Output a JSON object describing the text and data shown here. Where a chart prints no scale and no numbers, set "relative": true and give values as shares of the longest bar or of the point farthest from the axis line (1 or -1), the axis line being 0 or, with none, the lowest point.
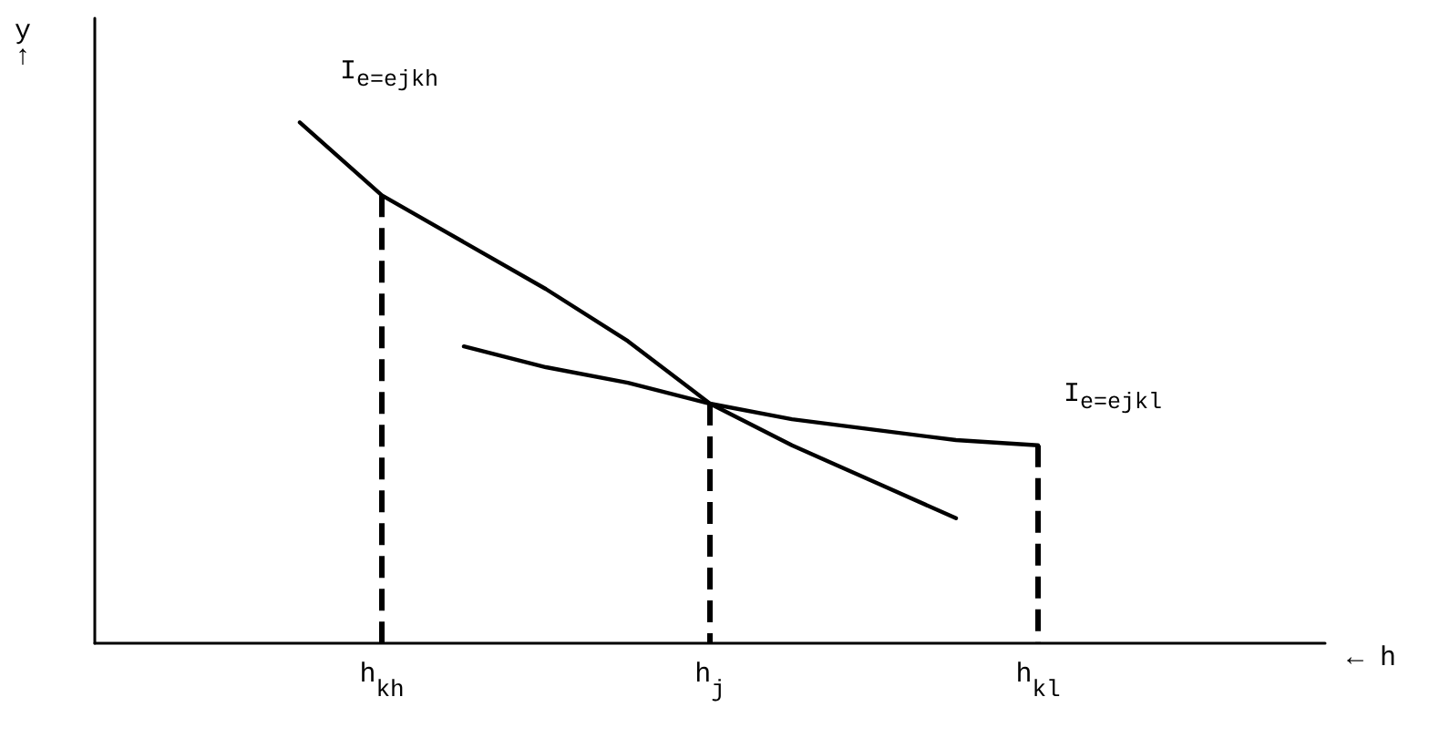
{
  "chart_data": {
    "type": "line",
    "relative": true,
    "xlabel": "← h",
    "ylabel": "y↑",
    "categories": [
      null,
      null,
      null,
      "h$_{kh}$",
      null,
      null,
      null,
      "h$_{j}$",
      null,
      null,
      null,
      "h$_{kl}$",
      null,
      null,
      null
    ],
    "series": [
      {
        "name": "I$_{e=ejkh}$",
        "color": "#000000",
        "values": [
          null,
          null,
          1.0,
          0.86,
          0.77,
          0.68,
          0.58,
          0.46,
          0.38,
          0.31,
          0.24,
          null,
          null,
          null,
          null
        ]
      },
      {
        "name": "I$_{e=ejkl}$",
        "color": "#000000",
        "values": [
          null,
          null,
          null,
          null,
          0.57,
          0.53,
          0.5,
          0.46,
          0.43,
          0.41,
          0.39,
          0.38,
          null,
          null,
          null
        ]
      }
    ],
    "ref_lines": [
      {
        "axis": "x",
        "value": "h$_{kh}$",
        "color": "#000000",
        "line_style": "dashed"
      },
      {
        "axis": "x",
        "value": "h$_{j}$",
        "color": "#000000",
        "line_style": "dashed"
      },
      {
        "axis": "x",
        "value": "h$_{kl}$",
        "color": "#000000",
        "line_style": "dashed"
      }
    ],
    "legend": false,
    "grid": false,
    "tick_labels": "x",
    "marker": "none",
    "line_style": "solid"
  }
}
